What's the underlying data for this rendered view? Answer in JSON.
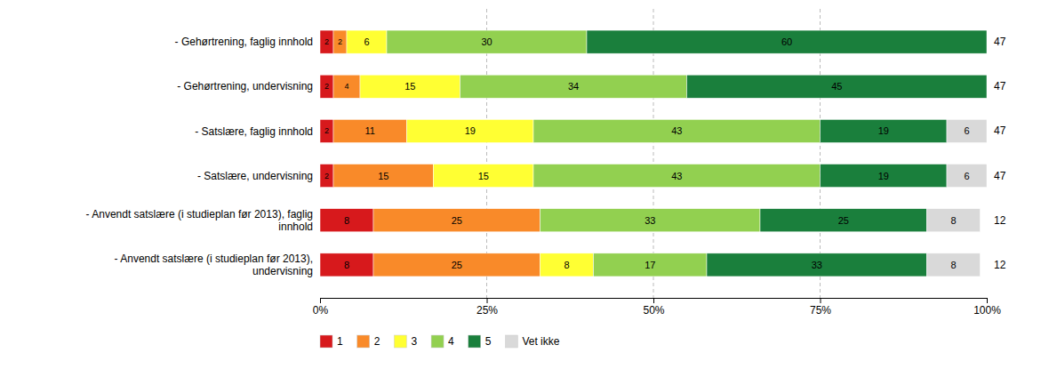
{
  "chart_data": {
    "type": "bar",
    "orientation": "horizontal",
    "stacked": true,
    "data_labels": true,
    "grid": true,
    "legend": "bottom",
    "categories": [
      "- Gehørtrening, faglig innhold",
      "- Gehørtrening, undervisning",
      "- Satslære, faglig innhold",
      "- Satslære, undervisning",
      "- Anvendt satslære (i studieplan før 2013), faglig\ninnhold",
      "- Anvendt satslære (i studieplan før 2013),\nundervisning"
    ],
    "series": [
      {
        "name": "1",
        "color": "#d7191c",
        "values": [
          2,
          2,
          2,
          2,
          8,
          8
        ]
      },
      {
        "name": "2",
        "color": "#f98a29",
        "values": [
          2,
          4,
          11,
          15,
          25,
          25
        ]
      },
      {
        "name": "3",
        "color": "#ffff33",
        "values": [
          6,
          15,
          19,
          15,
          0,
          8
        ]
      },
      {
        "name": "4",
        "color": "#92d050",
        "values": [
          30,
          34,
          43,
          43,
          33,
          17
        ]
      },
      {
        "name": "5",
        "color": "#1a7f3c",
        "values": [
          60,
          45,
          19,
          19,
          25,
          33
        ]
      },
      {
        "name": "Vet ikke",
        "color": "#d9d9d9",
        "values": [
          0,
          0,
          6,
          6,
          8,
          8
        ]
      }
    ],
    "n_values": [
      47,
      47,
      47,
      47,
      12,
      12
    ],
    "xlim": [
      0,
      100
    ],
    "xticks": [
      {
        "value": 0,
        "label": "0%"
      },
      {
        "value": 25,
        "label": "25%"
      },
      {
        "value": 50,
        "label": "50%"
      },
      {
        "value": 75,
        "label": "75%"
      },
      {
        "value": 100,
        "label": "100%"
      }
    ]
  }
}
